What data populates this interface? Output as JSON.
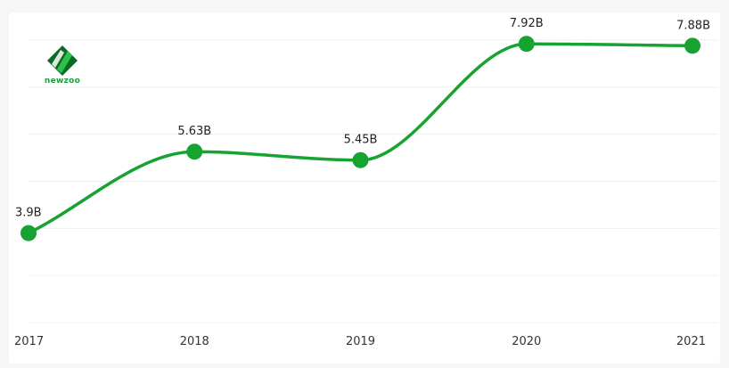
{
  "brand": {
    "name": "newzoo",
    "accent": "#16a332",
    "logo_dark": "#0b6b25"
  },
  "chart_data": {
    "type": "line",
    "x": [
      "2017",
      "2018",
      "2019",
      "2020",
      "2021"
    ],
    "series": [
      {
        "values": [
          3.9,
          5.63,
          5.45,
          7.92,
          7.88
        ],
        "labels": [
          "3.9B",
          "5.63B",
          "5.45B",
          "7.92B",
          "7.88B"
        ],
        "color": "#16a332"
      }
    ],
    "grid": "horizontal",
    "legend": "none"
  }
}
